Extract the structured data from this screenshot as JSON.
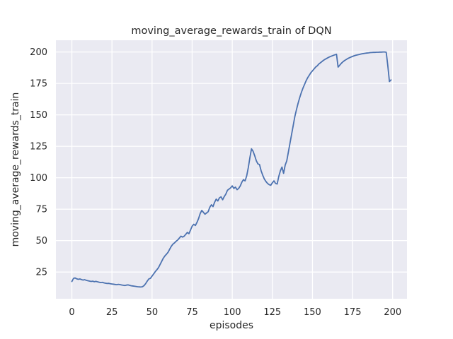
{
  "figure": {
    "title": "moving_average_rewards_train of DQN",
    "xlabel": "episodes",
    "ylabel": "moving_average_rewards_train"
  },
  "chart_data": {
    "type": "line",
    "title": "moving_average_rewards_train of DQN",
    "xlabel": "episodes",
    "ylabel": "moving_average_rewards_train",
    "x_ticks": [
      0,
      25,
      50,
      75,
      100,
      125,
      150,
      175,
      200
    ],
    "y_ticks": [
      25,
      50,
      75,
      100,
      125,
      150,
      175,
      200
    ],
    "xlim": [
      -9.95,
      208.95
    ],
    "ylim": [
      3.75,
      209.35
    ],
    "grid": true,
    "legend": "none",
    "colors": {
      "line": "#4c72b0",
      "plot_bg": "#eaeaf2",
      "grid": "#ffffff",
      "text": "#262626",
      "figure_bg": "#ffffff"
    },
    "series": [
      {
        "name": "moving_average_rewards_train",
        "x_start": 0,
        "x_step": 1,
        "values": [
          17.5,
          19.9,
          20.3,
          19.6,
          19.2,
          19.5,
          19.0,
          18.6,
          18.9,
          18.4,
          18.1,
          17.8,
          17.5,
          17.7,
          17.3,
          17.6,
          17.2,
          16.9,
          16.6,
          16.8,
          16.4,
          16.1,
          15.9,
          16.0,
          15.7,
          15.5,
          15.3,
          15.1,
          14.9,
          15.2,
          15.0,
          14.7,
          14.5,
          14.3,
          14.6,
          14.8,
          14.4,
          14.1,
          13.9,
          13.7,
          13.5,
          13.3,
          13.2,
          13.1,
          13.3,
          14.2,
          15.8,
          17.8,
          19.5,
          20.0,
          21.8,
          23.5,
          25.3,
          26.8,
          28.5,
          31.0,
          33.5,
          36.0,
          37.8,
          39.2,
          40.8,
          43.2,
          45.5,
          47.2,
          48.2,
          49.5,
          50.5,
          52.0,
          53.5,
          52.8,
          53.5,
          55.0,
          56.5,
          55.5,
          58.5,
          61.5,
          63.0,
          62.0,
          64.5,
          67.5,
          71.5,
          74.0,
          72.5,
          71.0,
          72.0,
          73.0,
          76.5,
          78.5,
          77.0,
          80.5,
          83.0,
          81.5,
          84.0,
          84.8,
          82.5,
          85.0,
          87.0,
          90.0,
          91.0,
          92.0,
          93.5,
          91.5,
          92.5,
          90.5,
          91.5,
          93.5,
          96.5,
          98.5,
          97.5,
          101.5,
          108.0,
          116.0,
          123.0,
          121.0,
          117.5,
          113.5,
          111.0,
          110.5,
          105.5,
          102.0,
          99.0,
          97.0,
          95.5,
          94.5,
          94.0,
          96.0,
          97.5,
          95.5,
          95.0,
          101.0,
          105.5,
          108.5,
          103.5,
          110.0,
          113.5,
          120.5,
          127.5,
          134.5,
          141.5,
          148.5,
          154.0,
          159.0,
          163.5,
          167.5,
          171.0,
          174.0,
          177.0,
          179.5,
          181.5,
          183.5,
          185.0,
          186.5,
          188.0,
          189.0,
          190.5,
          191.5,
          192.5,
          193.5,
          194.3,
          195.0,
          195.7,
          196.3,
          196.8,
          197.3,
          197.8,
          198.2,
          188.0,
          189.5,
          191.0,
          192.2,
          193.2,
          194.0,
          194.8,
          195.4,
          196.0,
          196.5,
          197.0,
          197.4,
          197.7,
          198.0,
          198.3,
          198.6,
          198.8,
          199.0,
          199.2,
          199.3,
          199.5,
          199.6,
          199.7,
          199.7,
          199.8,
          199.8,
          199.9,
          199.9,
          200.0,
          200.0,
          199.8,
          189.0,
          176.5,
          177.8
        ]
      }
    ]
  }
}
